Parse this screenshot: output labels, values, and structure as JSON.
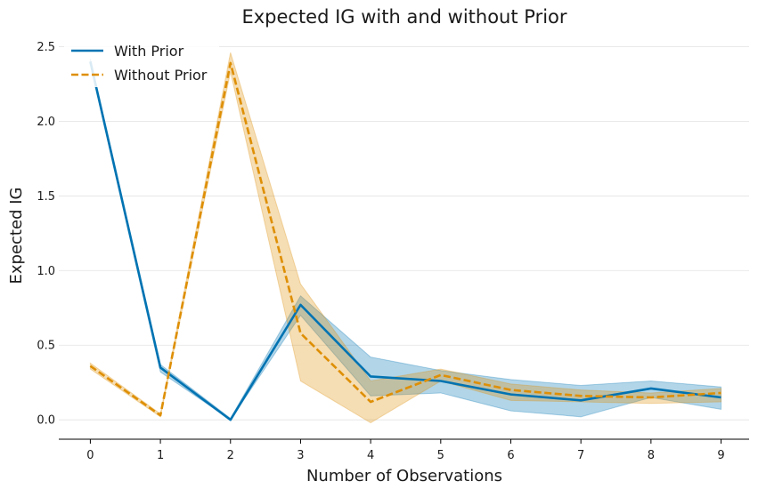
{
  "chart_data": {
    "type": "line",
    "title": "Expected IG with and without Prior",
    "xlabel": "Number of Observations",
    "ylabel": "Expected IG",
    "x": [
      0,
      1,
      2,
      3,
      4,
      5,
      6,
      7,
      8,
      9
    ],
    "xlim": [
      -0.45,
      9.4
    ],
    "ylim": [
      -0.13,
      2.55
    ],
    "yticks": [
      0.0,
      0.5,
      1.0,
      1.5,
      2.0,
      2.5
    ],
    "ytick_labels": [
      "0.0",
      "0.5",
      "1.0",
      "1.5",
      "2.0",
      "2.5"
    ],
    "xtick_labels": [
      "0",
      "1",
      "2",
      "3",
      "4",
      "5",
      "6",
      "7",
      "8",
      "9"
    ],
    "grid": "horizontal",
    "legend_position": "top-left",
    "series": [
      {
        "name": "With Prior",
        "color": "#0173b2",
        "style": "solid",
        "values": [
          2.4,
          0.35,
          0.0,
          0.77,
          0.29,
          0.26,
          0.17,
          0.13,
          0.21,
          0.15
        ],
        "lower": [
          2.38,
          0.32,
          0.0,
          0.7,
          0.16,
          0.18,
          0.06,
          0.02,
          0.15,
          0.07
        ],
        "upper": [
          2.42,
          0.37,
          0.01,
          0.83,
          0.42,
          0.33,
          0.27,
          0.23,
          0.26,
          0.22
        ]
      },
      {
        "name": "Without Prior",
        "color": "#de8f05",
        "style": "dashed",
        "values": [
          0.36,
          0.03,
          2.39,
          0.58,
          0.12,
          0.3,
          0.2,
          0.16,
          0.15,
          0.18
        ],
        "lower": [
          0.34,
          0.02,
          2.33,
          0.26,
          -0.02,
          0.26,
          0.13,
          0.12,
          0.11,
          0.12
        ],
        "upper": [
          0.38,
          0.04,
          2.46,
          0.91,
          0.26,
          0.34,
          0.24,
          0.2,
          0.18,
          0.21
        ]
      }
    ]
  }
}
